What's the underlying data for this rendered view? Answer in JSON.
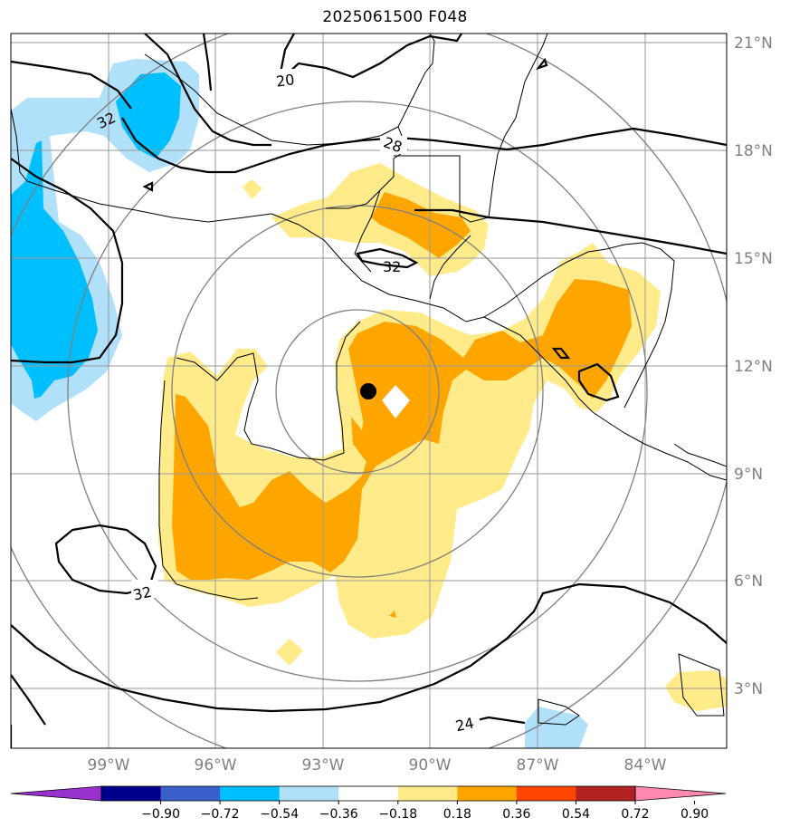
{
  "title": "2025061500 F048",
  "map": {
    "lat_labels": [
      "21°N",
      "18°N",
      "15°N",
      "12°N",
      "9°N",
      "6°N",
      "3°N"
    ],
    "lon_labels": [
      "99°W",
      "96°W",
      "93°W",
      "90°W",
      "87°W",
      "84°W"
    ],
    "contour_labels": [
      "20",
      "32",
      "28",
      "32",
      "32",
      "24"
    ],
    "storm_marker": "center-dot"
  },
  "colorbar": {
    "tick_labels": [
      "−0.90",
      "−0.72",
      "−0.54",
      "−0.36",
      "−0.18",
      "0.18",
      "0.36",
      "0.54",
      "0.72",
      "0.90"
    ],
    "colors": [
      "#9932cc",
      "#00008b",
      "#3a5fcd",
      "#00bfff",
      "#b0e0fa",
      "#ffffff",
      "#ffeb8a",
      "#ffa500",
      "#ff4500",
      "#b22222",
      "#ff88b0"
    ]
  }
}
